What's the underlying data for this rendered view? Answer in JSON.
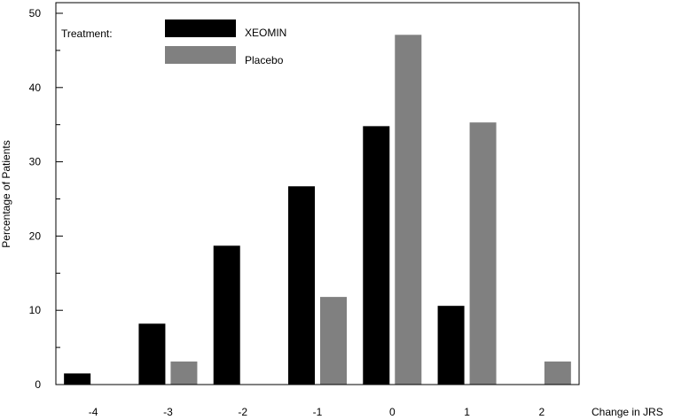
{
  "chart_data": {
    "type": "bar",
    "title": "",
    "xlabel": "Change in JRS",
    "ylabel": "Percentage of Patients",
    "categories": [
      "-4",
      "-3",
      "-2",
      "-1",
      "0",
      "1",
      "2"
    ],
    "series": [
      {
        "name": "XEOMIN",
        "color": "#000000",
        "values": [
          1.5,
          8.2,
          18.7,
          26.7,
          34.8,
          10.6,
          0
        ]
      },
      {
        "name": "Placebo",
        "color": "#808080",
        "values": [
          0,
          3.1,
          0,
          11.8,
          47.1,
          35.3,
          3.1
        ]
      }
    ],
    "ylim": [
      0,
      50
    ],
    "yticks": [
      0,
      10,
      20,
      30,
      40,
      50
    ],
    "legend_title": "Treatment:",
    "legend_position": "top-left",
    "grid": false
  }
}
